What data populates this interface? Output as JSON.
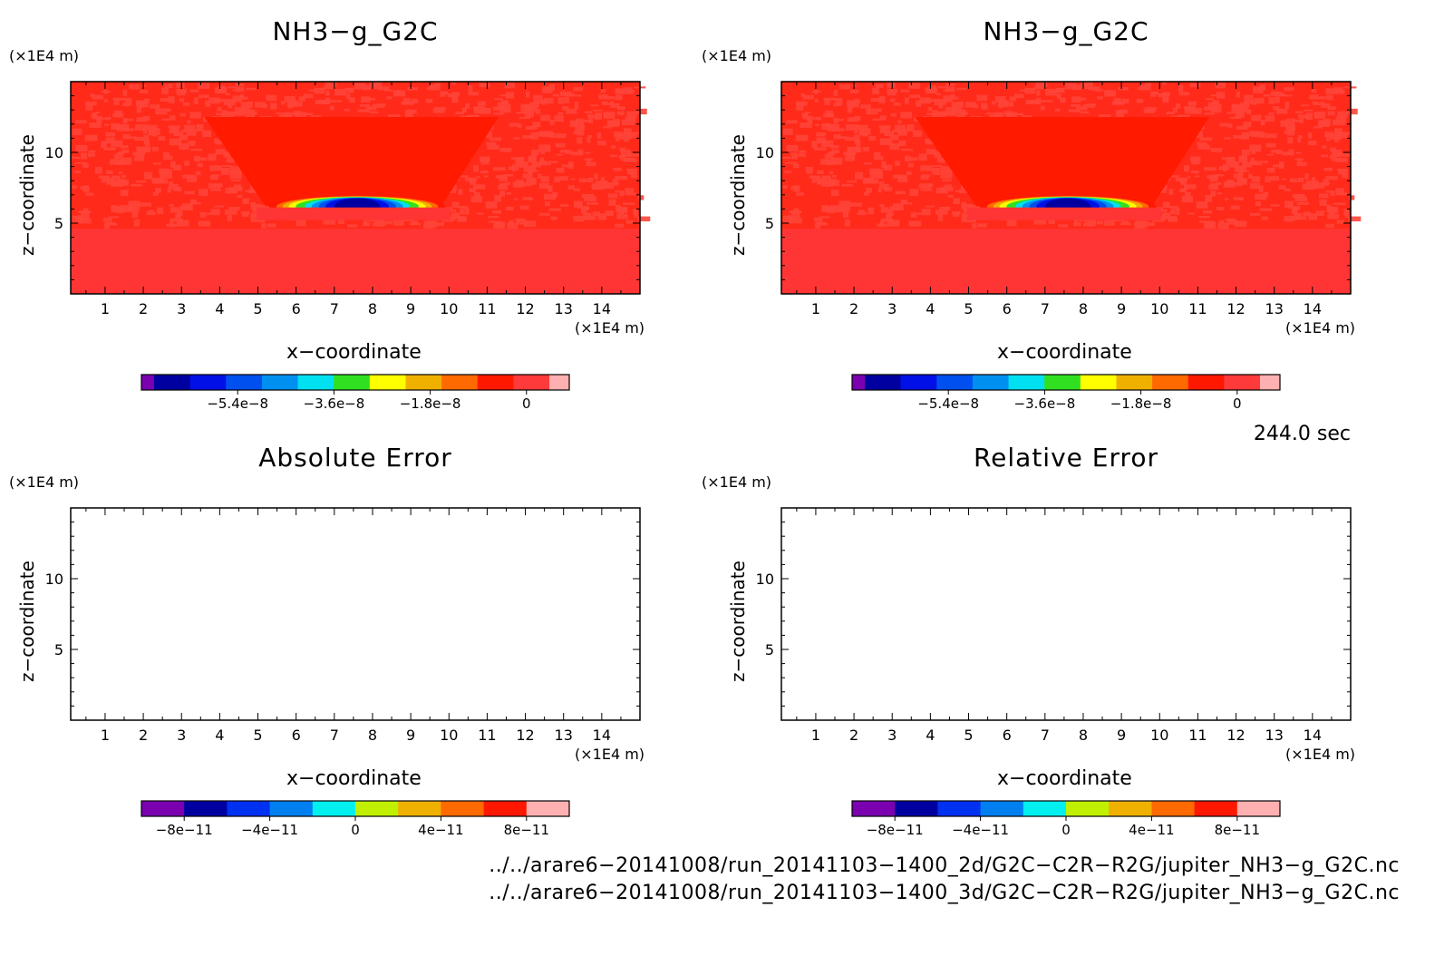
{
  "panels": [
    {
      "title": "NH3−g_G2C",
      "y_unit": "(×1E4 m)",
      "x_unit": "(×1E4 m)",
      "xlabel": "x−coordinate",
      "ylabel": "z−coordinate",
      "field": "filled"
    },
    {
      "title": "NH3−g_G2C",
      "y_unit": "(×1E4 m)",
      "x_unit": "(×1E4 m)",
      "xlabel": "x−coordinate",
      "ylabel": "z−coordinate",
      "field": "filled"
    },
    {
      "title": "Absolute Error",
      "y_unit": "(×1E4 m)",
      "x_unit": "(×1E4 m)",
      "xlabel": "x−coordinate",
      "ylabel": "z−coordinate",
      "field": "empty"
    },
    {
      "title": "Relative Error",
      "y_unit": "(×1E4 m)",
      "x_unit": "(×1E4 m)",
      "xlabel": "x−coordinate",
      "ylabel": "z−coordinate",
      "field": "empty"
    }
  ],
  "time_label": "244.0 sec",
  "footer": [
    "../../arare6−20141008/run_20141103−1400_2d/G2C−C2R−R2G/jupiter_NH3−g_G2C.nc",
    "../../arare6−20141008/run_20141103−1400_3d/G2C−C2R−R2G/jupiter_NH3−g_G2C.nc"
  ],
  "chart_data": [
    {
      "type": "heatmap",
      "title": "NH3−g_G2C",
      "xlabel": "x−coordinate",
      "ylabel": "z−coordinate",
      "x_ticks": [
        1,
        2,
        3,
        4,
        5,
        6,
        7,
        8,
        9,
        10,
        11,
        12,
        13,
        14
      ],
      "y_ticks": [
        5,
        10
      ],
      "xlim": [
        0.1,
        15.0
      ],
      "ylim": [
        0.0,
        15.0
      ],
      "colorbar_colors": [
        "#7a00b0",
        "#0000a0",
        "#0010e6",
        "#0050f0",
        "#0090f0",
        "#00e0f0",
        "#30e020",
        "#ffff00",
        "#f0b000",
        "#ff6a00",
        "#ff1800",
        "#ff3a3a",
        "#ffb0b0"
      ],
      "colorbar_ticks": [
        "−5.4e−8",
        "−3.6e−8",
        "−1.8e−8",
        "0"
      ],
      "colorbar_tick_values": [
        -5.4e-08,
        -3.6e-08,
        -1.8e-08,
        0
      ],
      "colorbar_range": [
        -7.2e-08,
        8e-09
      ],
      "features": {
        "background_value": 0,
        "lower_layer_top_z": 4.6,
        "funnel_top_x": [
          3.6,
          11.3
        ],
        "funnel_top_z": 12.5,
        "funnel_bottom_x": [
          5.2,
          9.8
        ],
        "funnel_bottom_z": 6.2,
        "min_blob_center_x": 7.6,
        "min_blob_center_z": 6.3,
        "min_blob_halfwidth_x": 2.3,
        "min_blob_height_z": 0.5
      }
    },
    {
      "type": "heatmap",
      "title": "NH3−g_G2C",
      "xlabel": "x−coordinate",
      "ylabel": "z−coordinate",
      "x_ticks": [
        1,
        2,
        3,
        4,
        5,
        6,
        7,
        8,
        9,
        10,
        11,
        12,
        13,
        14
      ],
      "y_ticks": [
        5,
        10
      ],
      "xlim": [
        0.1,
        15.0
      ],
      "ylim": [
        0.0,
        15.0
      ],
      "colorbar_colors": [
        "#7a00b0",
        "#0000a0",
        "#0010e6",
        "#0050f0",
        "#0090f0",
        "#00e0f0",
        "#30e020",
        "#ffff00",
        "#f0b000",
        "#ff6a00",
        "#ff1800",
        "#ff3a3a",
        "#ffb0b0"
      ],
      "colorbar_ticks": [
        "−5.4e−8",
        "−3.6e−8",
        "−1.8e−8",
        "0"
      ],
      "colorbar_tick_values": [
        -5.4e-08,
        -3.6e-08,
        -1.8e-08,
        0
      ],
      "colorbar_range": [
        -7.2e-08,
        8e-09
      ],
      "features": {
        "background_value": 0,
        "lower_layer_top_z": 4.6,
        "funnel_top_x": [
          3.6,
          11.3
        ],
        "funnel_top_z": 12.5,
        "funnel_bottom_x": [
          5.2,
          9.8
        ],
        "funnel_bottom_z": 6.2,
        "min_blob_center_x": 7.6,
        "min_blob_center_z": 6.3,
        "min_blob_halfwidth_x": 2.3,
        "min_blob_height_z": 0.5
      }
    },
    {
      "type": "heatmap",
      "title": "Absolute Error",
      "xlabel": "x−coordinate",
      "ylabel": "z−coordinate",
      "x_ticks": [
        1,
        2,
        3,
        4,
        5,
        6,
        7,
        8,
        9,
        10,
        11,
        12,
        13,
        14
      ],
      "y_ticks": [
        5,
        10
      ],
      "xlim": [
        0.1,
        15.0
      ],
      "ylim": [
        0.0,
        15.0
      ],
      "colorbar_colors": [
        "#7a00b0",
        "#0000a0",
        "#0030f0",
        "#0080f0",
        "#00f0f0",
        "#c0f000",
        "#f0b000",
        "#ff6a00",
        "#ff1800",
        "#ffb0b0"
      ],
      "colorbar_ticks": [
        "−8e−11",
        "−4e−11",
        "0",
        "4e−11",
        "8e−11"
      ],
      "colorbar_tick_values": [
        -8e-11,
        -4e-11,
        0,
        4e-11,
        8e-11
      ],
      "colorbar_range": [
        -1e-10,
        1e-10
      ],
      "values": "none shown (blank field)"
    },
    {
      "type": "heatmap",
      "title": "Relative Error",
      "xlabel": "x−coordinate",
      "ylabel": "z−coordinate",
      "x_ticks": [
        1,
        2,
        3,
        4,
        5,
        6,
        7,
        8,
        9,
        10,
        11,
        12,
        13,
        14
      ],
      "y_ticks": [
        5,
        10
      ],
      "xlim": [
        0.1,
        15.0
      ],
      "ylim": [
        0.0,
        15.0
      ],
      "colorbar_colors": [
        "#7a00b0",
        "#0000a0",
        "#0030f0",
        "#0080f0",
        "#00f0f0",
        "#c0f000",
        "#f0b000",
        "#ff6a00",
        "#ff1800",
        "#ffb0b0"
      ],
      "colorbar_ticks": [
        "−8e−11",
        "−4e−11",
        "0",
        "4e−11",
        "8e−11"
      ],
      "colorbar_tick_values": [
        -8e-11,
        -4e-11,
        0,
        4e-11,
        8e-11
      ],
      "colorbar_range": [
        -1e-10,
        1e-10
      ],
      "values": "none shown (blank field)"
    }
  ]
}
